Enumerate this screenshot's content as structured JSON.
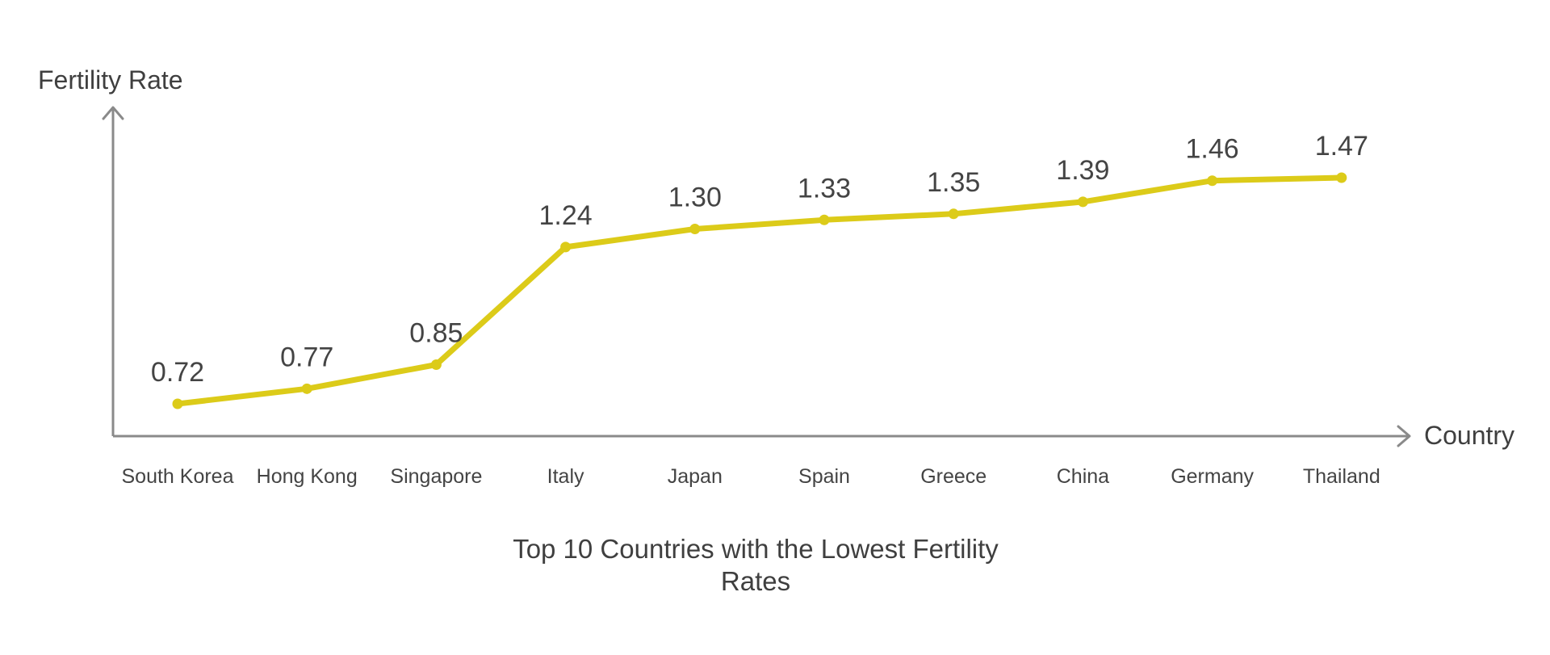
{
  "chart_data": {
    "type": "line",
    "title_lines": [
      "Top 10 Countries with the Lowest Fertility",
      "Rates"
    ],
    "xlabel": "Country",
    "ylabel": "Fertility Rate",
    "categories": [
      "South Korea",
      "Hong Kong",
      "Singapore",
      "Italy",
      "Japan",
      "Spain",
      "Greece",
      "China",
      "Germany",
      "Thailand"
    ],
    "series": [
      {
        "values": [
          0.72,
          0.77,
          0.85,
          1.24,
          1.3,
          1.33,
          1.35,
          1.39,
          1.46,
          1.47
        ],
        "labels": [
          "0.72",
          "0.77",
          "0.85",
          "1.24",
          "1.30",
          "1.33",
          "1.35",
          "1.39",
          "1.46",
          "1.47"
        ],
        "color": "#dccb19"
      }
    ],
    "grid": false,
    "axis_color": "#8a8a8a"
  }
}
